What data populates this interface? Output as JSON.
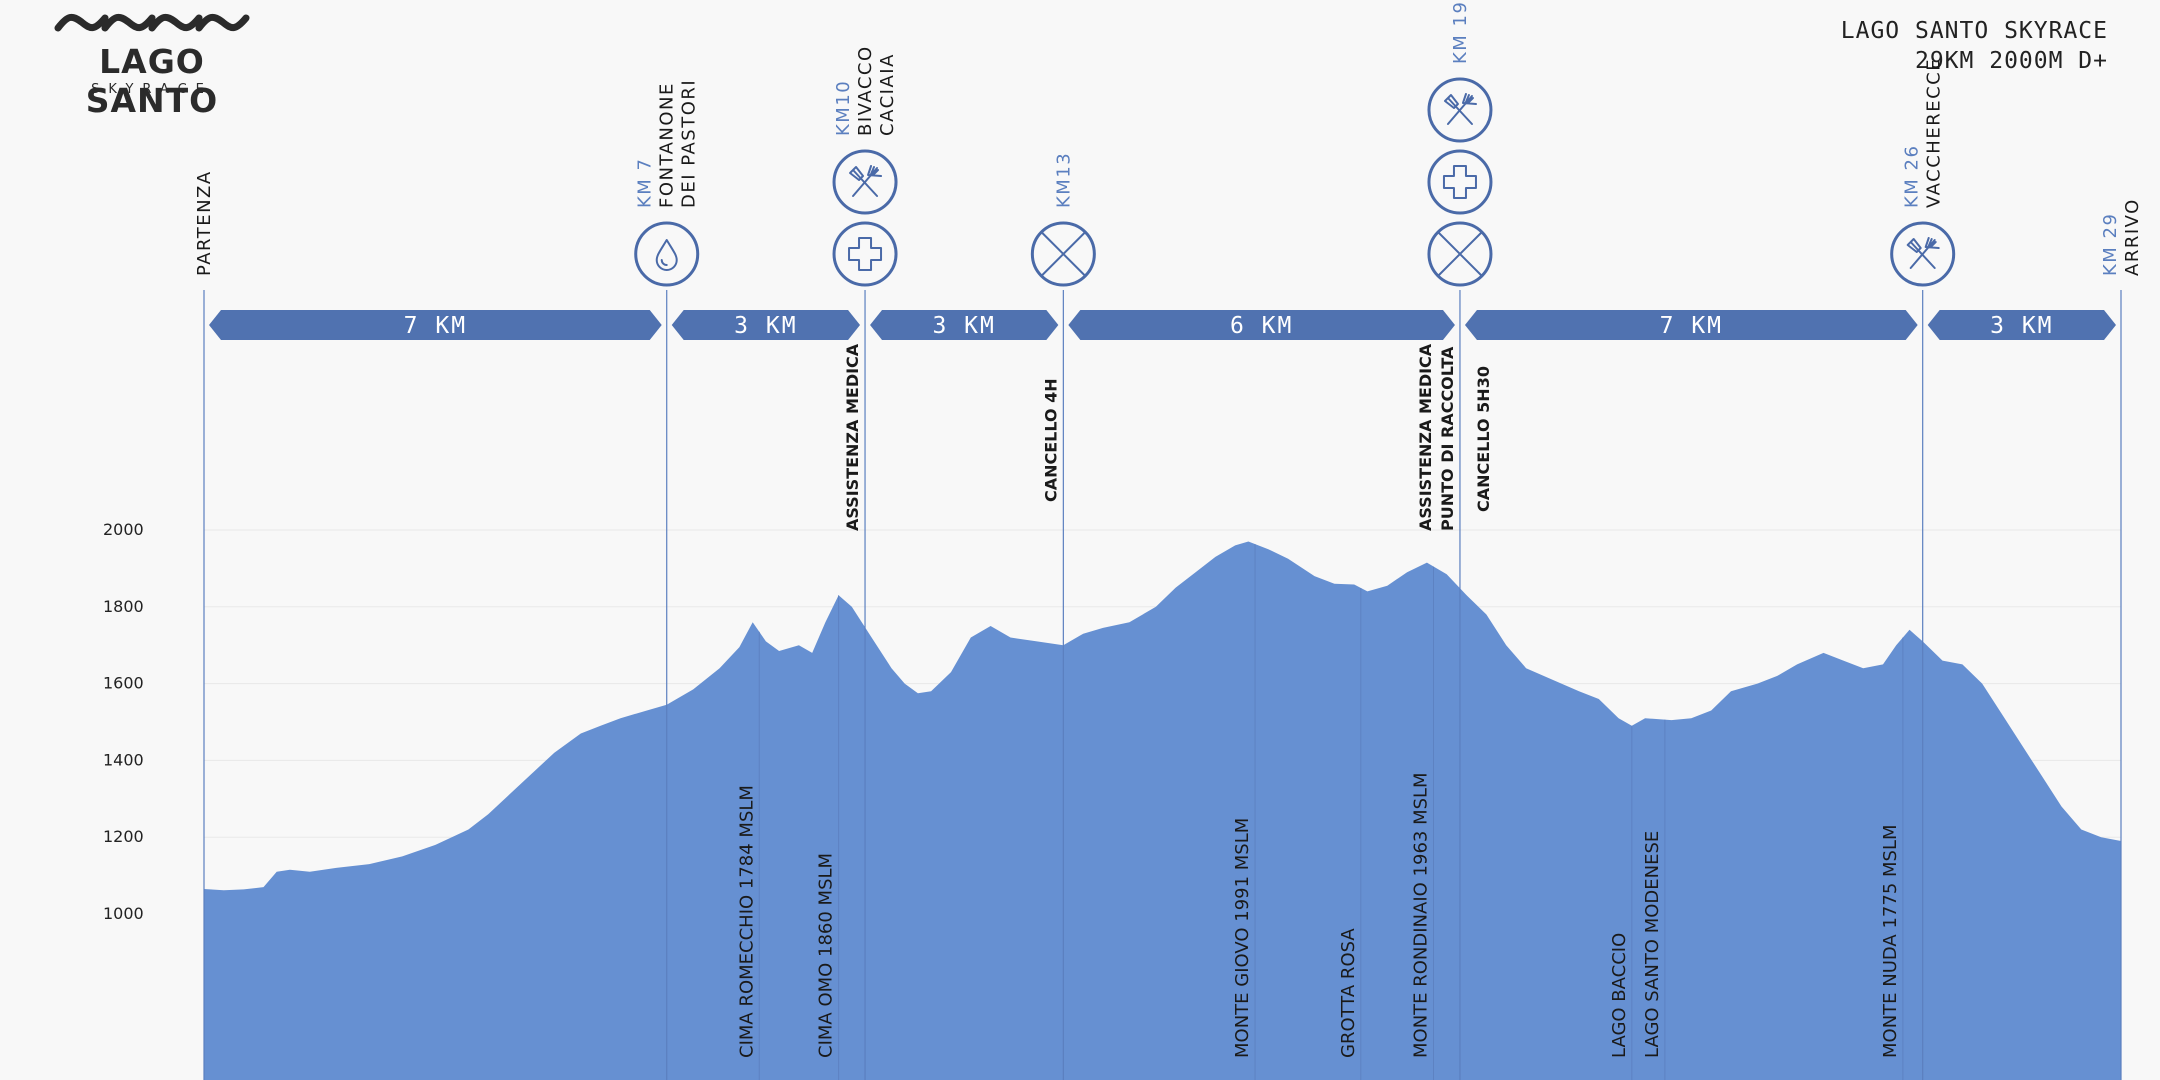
{
  "header": {
    "logo_title": "LAGO SANTO",
    "logo_subtitle": "SKYRACE",
    "race_title_line1": "LAGO SANTO SKYRACE",
    "race_title_line2": "29KM 2000M D+"
  },
  "colors": {
    "profile_fill": "#6690d2",
    "segment_fill": "#5072b0",
    "icon_stroke": "#4a6aa8",
    "km_text": "#5b7fbf",
    "line": "#5b7fbf",
    "grid": "#e9e9e9"
  },
  "chart_data": {
    "type": "area",
    "xlim": [
      0,
      29
    ],
    "ylim": [
      800,
      2000
    ],
    "yticks": [
      1000,
      1200,
      1400,
      1600,
      1800,
      2000
    ],
    "ytick_labels": [
      "1000",
      "1200",
      "1400",
      "1600",
      "1800",
      "2000"
    ],
    "grid": true,
    "profile": [
      [
        0,
        1065
      ],
      [
        0.3,
        1062
      ],
      [
        0.6,
        1064
      ],
      [
        0.9,
        1070
      ],
      [
        1.1,
        1110
      ],
      [
        1.3,
        1115
      ],
      [
        1.6,
        1110
      ],
      [
        2.0,
        1120
      ],
      [
        2.5,
        1130
      ],
      [
        3.0,
        1150
      ],
      [
        3.5,
        1180
      ],
      [
        4.0,
        1220
      ],
      [
        4.3,
        1260
      ],
      [
        4.8,
        1340
      ],
      [
        5.3,
        1420
      ],
      [
        5.7,
        1470
      ],
      [
        6.0,
        1490
      ],
      [
        6.3,
        1510
      ],
      [
        6.7,
        1530
      ],
      [
        7.0,
        1545
      ],
      [
        7.4,
        1585
      ],
      [
        7.8,
        1640
      ],
      [
        8.1,
        1695
      ],
      [
        8.3,
        1760
      ],
      [
        8.5,
        1710
      ],
      [
        8.7,
        1685
      ],
      [
        9.0,
        1700
      ],
      [
        9.2,
        1680
      ],
      [
        9.4,
        1760
      ],
      [
        9.6,
        1830
      ],
      [
        9.8,
        1800
      ],
      [
        10.1,
        1720
      ],
      [
        10.4,
        1640
      ],
      [
        10.6,
        1600
      ],
      [
        10.8,
        1575
      ],
      [
        11.0,
        1580
      ],
      [
        11.3,
        1630
      ],
      [
        11.6,
        1720
      ],
      [
        11.9,
        1750
      ],
      [
        12.2,
        1720
      ],
      [
        12.6,
        1710
      ],
      [
        13.0,
        1700
      ],
      [
        13.3,
        1730
      ],
      [
        13.6,
        1745
      ],
      [
        14.0,
        1760
      ],
      [
        14.4,
        1800
      ],
      [
        14.7,
        1850
      ],
      [
        15.0,
        1890
      ],
      [
        15.3,
        1930
      ],
      [
        15.6,
        1960
      ],
      [
        15.8,
        1970
      ],
      [
        16.1,
        1950
      ],
      [
        16.4,
        1925
      ],
      [
        16.8,
        1880
      ],
      [
        17.1,
        1860
      ],
      [
        17.4,
        1858
      ],
      [
        17.6,
        1840
      ],
      [
        17.9,
        1855
      ],
      [
        18.2,
        1890
      ],
      [
        18.5,
        1915
      ],
      [
        18.8,
        1885
      ],
      [
        19.1,
        1830
      ],
      [
        19.4,
        1780
      ],
      [
        19.7,
        1700
      ],
      [
        20.0,
        1640
      ],
      [
        20.4,
        1610
      ],
      [
        20.8,
        1580
      ],
      [
        21.1,
        1560
      ],
      [
        21.4,
        1510
      ],
      [
        21.6,
        1490
      ],
      [
        21.8,
        1510
      ],
      [
        22.2,
        1505
      ],
      [
        22.5,
        1510
      ],
      [
        22.8,
        1530
      ],
      [
        23.1,
        1580
      ],
      [
        23.5,
        1600
      ],
      [
        23.8,
        1620
      ],
      [
        24.1,
        1650
      ],
      [
        24.5,
        1680
      ],
      [
        24.8,
        1660
      ],
      [
        25.1,
        1640
      ],
      [
        25.4,
        1650
      ],
      [
        25.6,
        1700
      ],
      [
        25.8,
        1740
      ],
      [
        26.0,
        1710
      ],
      [
        26.3,
        1660
      ],
      [
        26.6,
        1650
      ],
      [
        26.9,
        1600
      ],
      [
        27.2,
        1520
      ],
      [
        27.5,
        1440
      ],
      [
        27.8,
        1360
      ],
      [
        28.1,
        1280
      ],
      [
        28.4,
        1220
      ],
      [
        28.7,
        1200
      ],
      [
        29.0,
        1190
      ]
    ],
    "profile_x_note_removed": true,
    "segments": [
      {
        "from": 0,
        "to": 7,
        "label": "7 KM"
      },
      {
        "from": 7,
        "to": 10,
        "label": "3 KM"
      },
      {
        "from": 10,
        "to": 13,
        "label": "3 KM"
      },
      {
        "from": 13,
        "to": 19,
        "label": "6 KM"
      },
      {
        "from": 19,
        "to": 26,
        "label": "7 KM"
      },
      {
        "from": 26,
        "to": 29,
        "label": "3 KM"
      }
    ],
    "checkpoints": [
      {
        "pos": 0,
        "km": "",
        "name": [
          "PARTENZA"
        ],
        "icons": [],
        "below": []
      },
      {
        "pos": 7,
        "km": "KM 7",
        "name": [
          "FONTANONE",
          "DEI PASTORI"
        ],
        "icons": [
          "water-drop"
        ],
        "below": []
      },
      {
        "pos": 10,
        "km": "KM10",
        "name": [
          "BIVACCO",
          "CACIAIA"
        ],
        "icons": [
          "medical-cross",
          "food-utensils"
        ],
        "below": [
          "ASSISTENZA MEDICA"
        ]
      },
      {
        "pos": 13,
        "km": "KM13",
        "name": [],
        "icons": [
          "cutoff-x"
        ],
        "below": [
          "CANCELLO 4H"
        ]
      },
      {
        "pos": 19,
        "km": "KM 19",
        "name": [],
        "icons": [
          "cutoff-x",
          "medical-cross",
          "food-utensils"
        ],
        "below": [
          "ASSISTENZA MEDICA",
          "PUNTO DI RACCOLTA",
          "CANCELLO 5H30"
        ]
      },
      {
        "pos": 26,
        "km": "KM 26",
        "name": [
          "VACCHERECCE"
        ],
        "icons": [
          "food-utensils"
        ],
        "below": []
      },
      {
        "pos": 29,
        "km": "KM 29",
        "name": [
          "ARRIVO"
        ],
        "icons": [],
        "below": []
      }
    ],
    "landmarks": [
      {
        "x": 8.4,
        "label": "CIMA ROMECCHIO 1784 MSLM"
      },
      {
        "x": 9.6,
        "label": "CIMA OMO 1860 MSLM"
      },
      {
        "x": 15.9,
        "label": "MONTE GIOVO 1991 MSLM"
      },
      {
        "x": 17.5,
        "label": "GROTTA ROSA"
      },
      {
        "x": 18.6,
        "label": "MONTE RONDINAIO 1963 MSLM"
      },
      {
        "x": 21.6,
        "label": "LAGO BACCIO"
      },
      {
        "x": 22.1,
        "label": "LAGO SANTO MODENESE"
      },
      {
        "x": 25.7,
        "label": "MONTE NUDA 1775 MSLM"
      }
    ]
  }
}
